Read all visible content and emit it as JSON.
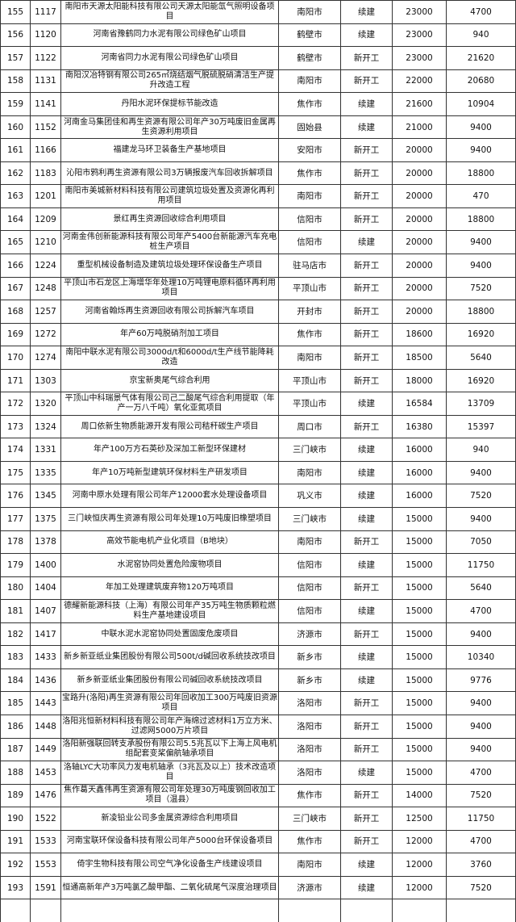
{
  "table": {
    "rows": [
      [
        "155",
        "1117",
        "南阳市天源太阳能科技有限公司天源太阳能氙气照明设备项目",
        "南阳市",
        "续建",
        "23000",
        "4700"
      ],
      [
        "156",
        "1120",
        "河南省豫鹤同力水泥有限公司绿色矿山项目",
        "鹤壁市",
        "续建",
        "23000",
        "940"
      ],
      [
        "157",
        "1122",
        "河南省同力水泥有限公司绿色矿山项目",
        "鹤壁市",
        "新开工",
        "23000",
        "21620"
      ],
      [
        "158",
        "1131",
        "南阳汉冶特钢有限公司265㎡烧结烟气脱硫脱硝清洁生产提升改造工程",
        "南阳市",
        "新开工",
        "22000",
        "20680"
      ],
      [
        "159",
        "1141",
        "丹阳水泥环保提标节能改造",
        "焦作市",
        "续建",
        "21600",
        "10904"
      ],
      [
        "160",
        "1152",
        "河南金马集团佳和再生资源有限公司年产30万吨废旧金属再生资源利用项目",
        "固始县",
        "续建",
        "21000",
        "9400"
      ],
      [
        "161",
        "1166",
        "福建龙马环卫装备生产基地项目",
        "安阳市",
        "新开工",
        "20000",
        "9400"
      ],
      [
        "162",
        "1183",
        "沁阳市鸦利再生资源有限公司3万辆报废汽车回收拆解项目",
        "焦作市",
        "新开工",
        "20000",
        "18800"
      ],
      [
        "163",
        "1201",
        "南阳市美城新材料科技有限公司建筑垃圾处置及资源化再利用项目",
        "南阳市",
        "新开工",
        "20000",
        "470"
      ],
      [
        "164",
        "1209",
        "景红再生资源回收综合利用项目",
        "信阳市",
        "新开工",
        "20000",
        "18800"
      ],
      [
        "165",
        "1210",
        "河南金伟创新能源科技有限公司年产5400台新能源汽车充电桩生产项目",
        "信阳市",
        "续建",
        "20000",
        "9400"
      ],
      [
        "166",
        "1224",
        "重型机械设备制造及建筑垃圾处理环保设备生产项目",
        "驻马店市",
        "新开工",
        "20000",
        "9400"
      ],
      [
        "167",
        "1248",
        "平顶山市石龙区上海增华年处理10万吨锂电原料循环再利用项目",
        "平顶山市",
        "新开工",
        "20000",
        "7520"
      ],
      [
        "168",
        "1257",
        "河南省翰烁再生资源回收有限公司拆解汽车项目",
        "开封市",
        "新开工",
        "20000",
        "18800"
      ],
      [
        "169",
        "1272",
        "年产60万吨脱硝剂加工项目",
        "焦作市",
        "新开工",
        "18600",
        "16920"
      ],
      [
        "170",
        "1274",
        "南阳中联水泥有限公司3000d/t和6000d/t生产线节能降耗改造",
        "南阳市",
        "新开工",
        "18500",
        "5640"
      ],
      [
        "171",
        "1303",
        "京宝新奥尾气综合利用",
        "平顶山市",
        "新开工",
        "18000",
        "16920"
      ],
      [
        "172",
        "1320",
        "平顶山中科瑞景气体有限公司己二酸尾气综合利用提取（年产一万八千吨）氧化亚氮项目",
        "平顶山市",
        "续建",
        "16584",
        "13709"
      ],
      [
        "173",
        "1324",
        "周口依新生物质能源开发有限公司秸秆碳生产项目",
        "周口市",
        "新开工",
        "16380",
        "15397"
      ],
      [
        "174",
        "1331",
        "年产100万方石英砂及深加工新型环保建材",
        "三门峡市",
        "续建",
        "16000",
        "940"
      ],
      [
        "175",
        "1335",
        "年产10万吨新型建筑环保材料生产研发项目",
        "南阳市",
        "续建",
        "16000",
        "9400"
      ],
      [
        "176",
        "1345",
        "河南中原水处理有限公司年产12000套水处理设备项目",
        "巩义市",
        "续建",
        "16000",
        "7520"
      ],
      [
        "177",
        "1375",
        "三门峡恒庆再生资源有限公司年处理10万吨废旧橡塑项目",
        "三门峡市",
        "续建",
        "15000",
        "9400"
      ],
      [
        "178",
        "1378",
        "高效节能电机产业化项目（B地块）",
        "南阳市",
        "新开工",
        "15000",
        "7050"
      ],
      [
        "179",
        "1400",
        "水泥窑协同处置危险废物项目",
        "信阳市",
        "续建",
        "15000",
        "11750"
      ],
      [
        "180",
        "1404",
        "年加工处理建筑废弃物120万吨项目",
        "信阳市",
        "新开工",
        "15000",
        "5640"
      ],
      [
        "181",
        "1407",
        "德耀新能源科技（上海）有限公司年产35万吨生物质颗粒燃料生产基地建设项目",
        "信阳市",
        "续建",
        "15000",
        "4700"
      ],
      [
        "182",
        "1417",
        "中联水泥水泥窑协同处置固废危废项目",
        "济源市",
        "新开工",
        "15000",
        "9400"
      ],
      [
        "183",
        "1433",
        "新乡新亚纸业集团股份有限公司500t/d碱回收系统技改项目",
        "新乡市",
        "续建",
        "15000",
        "10340"
      ],
      [
        "184",
        "1436",
        "新乡新亚纸业集团股份有限公司碱回收系统技改项目",
        "新乡市",
        "续建",
        "15000",
        "9776"
      ],
      [
        "185",
        "1443",
        "宝路升(洛阳)再生资源有限公司年回收加工300万吨废旧资源项目",
        "洛阳市",
        "新开工",
        "15000",
        "9400"
      ],
      [
        "186",
        "1448",
        "洛阳兆恒新材料科技有限公司年产海绵过滤材料1万立方米、过滤网5000万片项目",
        "洛阳市",
        "新开工",
        "15000",
        "9400"
      ],
      [
        "187",
        "1449",
        "洛阳新强联回转支承股份有限公司5.5兆瓦以下上海上风电机组配套变桨偏航轴承项目",
        "洛阳市",
        "新开工",
        "15000",
        "9400"
      ],
      [
        "188",
        "1453",
        "洛轴LYC大功率风力发电机轴承（3兆瓦及以上）技术改造项目",
        "洛阳市",
        "续建",
        "15000",
        "4700"
      ],
      [
        "189",
        "1476",
        "焦作葛天鑫伟再生资源有限公司年处理30万吨废钢回收加工项目（温县）",
        "焦作市",
        "新开工",
        "14000",
        "7520"
      ],
      [
        "190",
        "1522",
        "新凌铅业公司多金属资源综合利用项目",
        "三门峡市",
        "新开工",
        "12500",
        "11750"
      ],
      [
        "191",
        "1533",
        "河南宝联环保设备科技有限公司年产5000台环保设备项目",
        "焦作市",
        "新开工",
        "12000",
        "4700"
      ],
      [
        "192",
        "1553",
        "倚宇生物科技有限公司空气净化设备生产线建设项目",
        "南阳市",
        "续建",
        "12000",
        "3760"
      ],
      [
        "193",
        "1591",
        "恒通高新年产3万吨氯乙酸甲酯、二氧化硫尾气深度治理项目",
        "济源市",
        "续建",
        "12000",
        "7520"
      ]
    ]
  }
}
